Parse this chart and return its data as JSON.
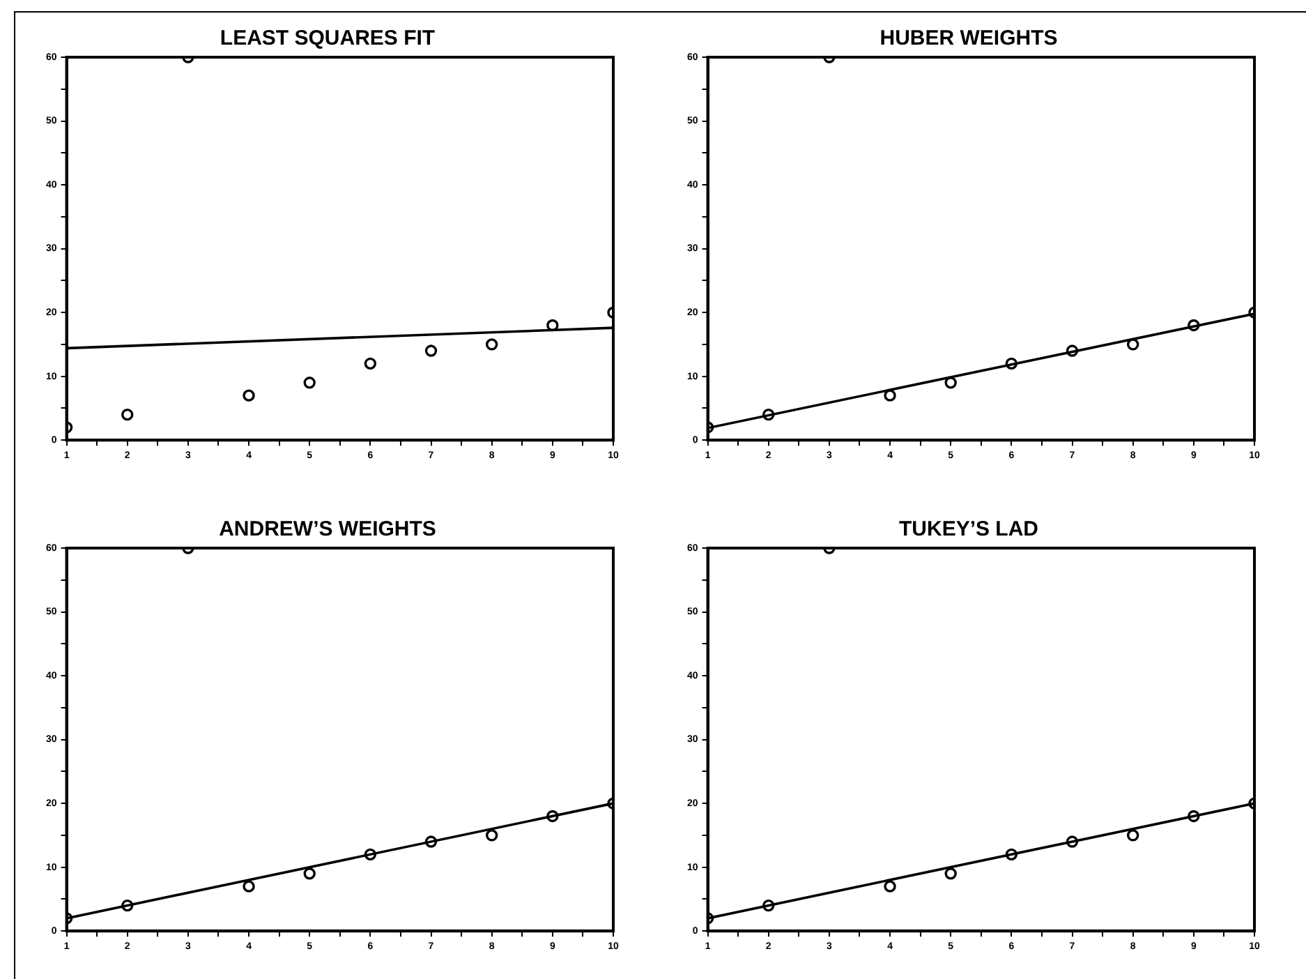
{
  "chart_data": [
    {
      "type": "scatter",
      "title": "LEAST SQUARES FIT",
      "x": [
        1,
        2,
        3,
        4,
        5,
        6,
        7,
        8,
        9,
        10
      ],
      "xlim": [
        1,
        10
      ],
      "ylim": [
        0,
        60
      ],
      "marker": "circle",
      "legend": false,
      "grid": false,
      "xticks": [
        1,
        {
          "value": 1.5,
          "label": null
        },
        2,
        {
          "value": 2.5,
          "label": null
        },
        3,
        {
          "value": 3.5,
          "label": null
        },
        4,
        {
          "value": 4.5,
          "label": null
        },
        5,
        {
          "value": 5.5,
          "label": null
        },
        6,
        {
          "value": 6.5,
          "label": null
        },
        7,
        {
          "value": 7.5,
          "label": null
        },
        8,
        {
          "value": 8.5,
          "label": null
        },
        9,
        {
          "value": 9.5,
          "label": null
        },
        10
      ],
      "yticks": [
        0,
        {
          "value": 5,
          "label": null
        },
        10,
        {
          "value": 15,
          "label": null
        },
        20,
        {
          "value": 25,
          "label": null
        },
        30,
        {
          "value": 35,
          "label": null
        },
        40,
        {
          "value": 45,
          "label": null
        },
        50,
        {
          "value": 55,
          "label": null
        },
        60
      ],
      "series": [
        {
          "type": "scatter",
          "color": "#000000",
          "values": [
            2,
            4,
            60,
            7,
            9,
            12,
            14,
            15,
            18,
            20
          ]
        },
        {
          "type": "line",
          "color": "#000000",
          "marker": "none",
          "values": [
            14.4,
            null,
            null,
            null,
            null,
            null,
            null,
            null,
            null,
            17.6
          ]
        }
      ]
    },
    {
      "type": "scatter",
      "title": "HUBER WEIGHTS",
      "x": [
        1,
        2,
        3,
        4,
        5,
        6,
        7,
        8,
        9,
        10
      ],
      "xlim": [
        1,
        10
      ],
      "ylim": [
        0,
        60
      ],
      "marker": "circle",
      "legend": false,
      "grid": false,
      "xticks": [
        1,
        {
          "value": 1.5,
          "label": null
        },
        2,
        {
          "value": 2.5,
          "label": null
        },
        3,
        {
          "value": 3.5,
          "label": null
        },
        4,
        {
          "value": 4.5,
          "label": null
        },
        5,
        {
          "value": 5.5,
          "label": null
        },
        6,
        {
          "value": 6.5,
          "label": null
        },
        7,
        {
          "value": 7.5,
          "label": null
        },
        8,
        {
          "value": 8.5,
          "label": null
        },
        9,
        {
          "value": 9.5,
          "label": null
        },
        10
      ],
      "yticks": [
        0,
        {
          "value": 5,
          "label": null
        },
        10,
        {
          "value": 15,
          "label": null
        },
        20,
        {
          "value": 25,
          "label": null
        },
        30,
        {
          "value": 35,
          "label": null
        },
        40,
        {
          "value": 45,
          "label": null
        },
        50,
        {
          "value": 55,
          "label": null
        },
        60
      ],
      "series": [
        {
          "type": "scatter",
          "color": "#000000",
          "values": [
            2,
            4,
            60,
            7,
            9,
            12,
            14,
            15,
            18,
            20
          ]
        },
        {
          "type": "line",
          "color": "#000000",
          "marker": "none",
          "values": [
            1.9,
            null,
            null,
            null,
            null,
            null,
            null,
            null,
            null,
            19.8
          ]
        }
      ]
    },
    {
      "type": "scatter",
      "title": "ANDREW’S WEIGHTS",
      "x": [
        1,
        2,
        3,
        4,
        5,
        6,
        7,
        8,
        9,
        10
      ],
      "xlim": [
        1,
        10
      ],
      "ylim": [
        0,
        60
      ],
      "marker": "circle",
      "legend": false,
      "grid": false,
      "xticks": [
        1,
        {
          "value": 1.5,
          "label": null
        },
        2,
        {
          "value": 2.5,
          "label": null
        },
        3,
        {
          "value": 3.5,
          "label": null
        },
        4,
        {
          "value": 4.5,
          "label": null
        },
        5,
        {
          "value": 5.5,
          "label": null
        },
        6,
        {
          "value": 6.5,
          "label": null
        },
        7,
        {
          "value": 7.5,
          "label": null
        },
        8,
        {
          "value": 8.5,
          "label": null
        },
        9,
        {
          "value": 9.5,
          "label": null
        },
        10
      ],
      "yticks": [
        0,
        {
          "value": 5,
          "label": null
        },
        10,
        {
          "value": 15,
          "label": null
        },
        20,
        {
          "value": 25,
          "label": null
        },
        30,
        {
          "value": 35,
          "label": null
        },
        40,
        {
          "value": 45,
          "label": null
        },
        50,
        {
          "value": 55,
          "label": null
        },
        60
      ],
      "series": [
        {
          "type": "scatter",
          "color": "#000000",
          "values": [
            2,
            4,
            60,
            7,
            9,
            12,
            14,
            15,
            18,
            20
          ]
        },
        {
          "type": "line",
          "color": "#000000",
          "marker": "none",
          "values": [
            2,
            null,
            null,
            null,
            null,
            null,
            null,
            null,
            null,
            20
          ]
        }
      ]
    },
    {
      "type": "scatter",
      "title": "TUKEY’S LAD",
      "x": [
        1,
        2,
        3,
        4,
        5,
        6,
        7,
        8,
        9,
        10
      ],
      "xlim": [
        1,
        10
      ],
      "ylim": [
        0,
        60
      ],
      "marker": "circle",
      "legend": false,
      "grid": false,
      "xticks": [
        1,
        {
          "value": 1.5,
          "label": null
        },
        2,
        {
          "value": 2.5,
          "label": null
        },
        3,
        {
          "value": 3.5,
          "label": null
        },
        4,
        {
          "value": 4.5,
          "label": null
        },
        5,
        {
          "value": 5.5,
          "label": null
        },
        6,
        {
          "value": 6.5,
          "label": null
        },
        7,
        {
          "value": 7.5,
          "label": null
        },
        8,
        {
          "value": 8.5,
          "label": null
        },
        9,
        {
          "value": 9.5,
          "label": null
        },
        10
      ],
      "yticks": [
        0,
        {
          "value": 5,
          "label": null
        },
        10,
        {
          "value": 15,
          "label": null
        },
        20,
        {
          "value": 25,
          "label": null
        },
        30,
        {
          "value": 35,
          "label": null
        },
        40,
        {
          "value": 45,
          "label": null
        },
        50,
        {
          "value": 55,
          "label": null
        },
        60
      ],
      "series": [
        {
          "type": "scatter",
          "color": "#000000",
          "values": [
            2,
            4,
            60,
            7,
            9,
            12,
            14,
            15,
            18,
            20
          ]
        },
        {
          "type": "line",
          "color": "#000000",
          "marker": "none",
          "values": [
            2,
            null,
            null,
            null,
            null,
            null,
            null,
            null,
            null,
            20
          ]
        }
      ]
    }
  ]
}
